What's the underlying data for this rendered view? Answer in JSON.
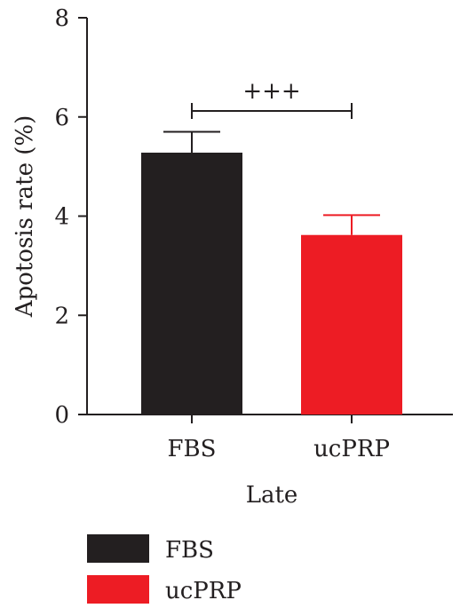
{
  "chart_data": {
    "type": "bar",
    "categories": [
      "FBS",
      "ucPRP"
    ],
    "values": [
      5.28,
      3.62
    ],
    "errors": [
      0.42,
      0.4
    ],
    "colors": [
      "#231f20",
      "#ed1c24"
    ],
    "ylabel": "Apotosis rate (%)",
    "xlabel": "Late",
    "ylim": [
      0,
      8
    ],
    "yticks": [
      0,
      2,
      4,
      6,
      8
    ],
    "significance": {
      "label": "+++",
      "between": [
        "FBS",
        "ucPRP"
      ]
    },
    "legend": {
      "placement": "bottom-left",
      "entries": [
        {
          "label": "FBS",
          "color": "#231f20"
        },
        {
          "label": "ucPRP",
          "color": "#ed1c24"
        }
      ]
    },
    "grid": false
  }
}
